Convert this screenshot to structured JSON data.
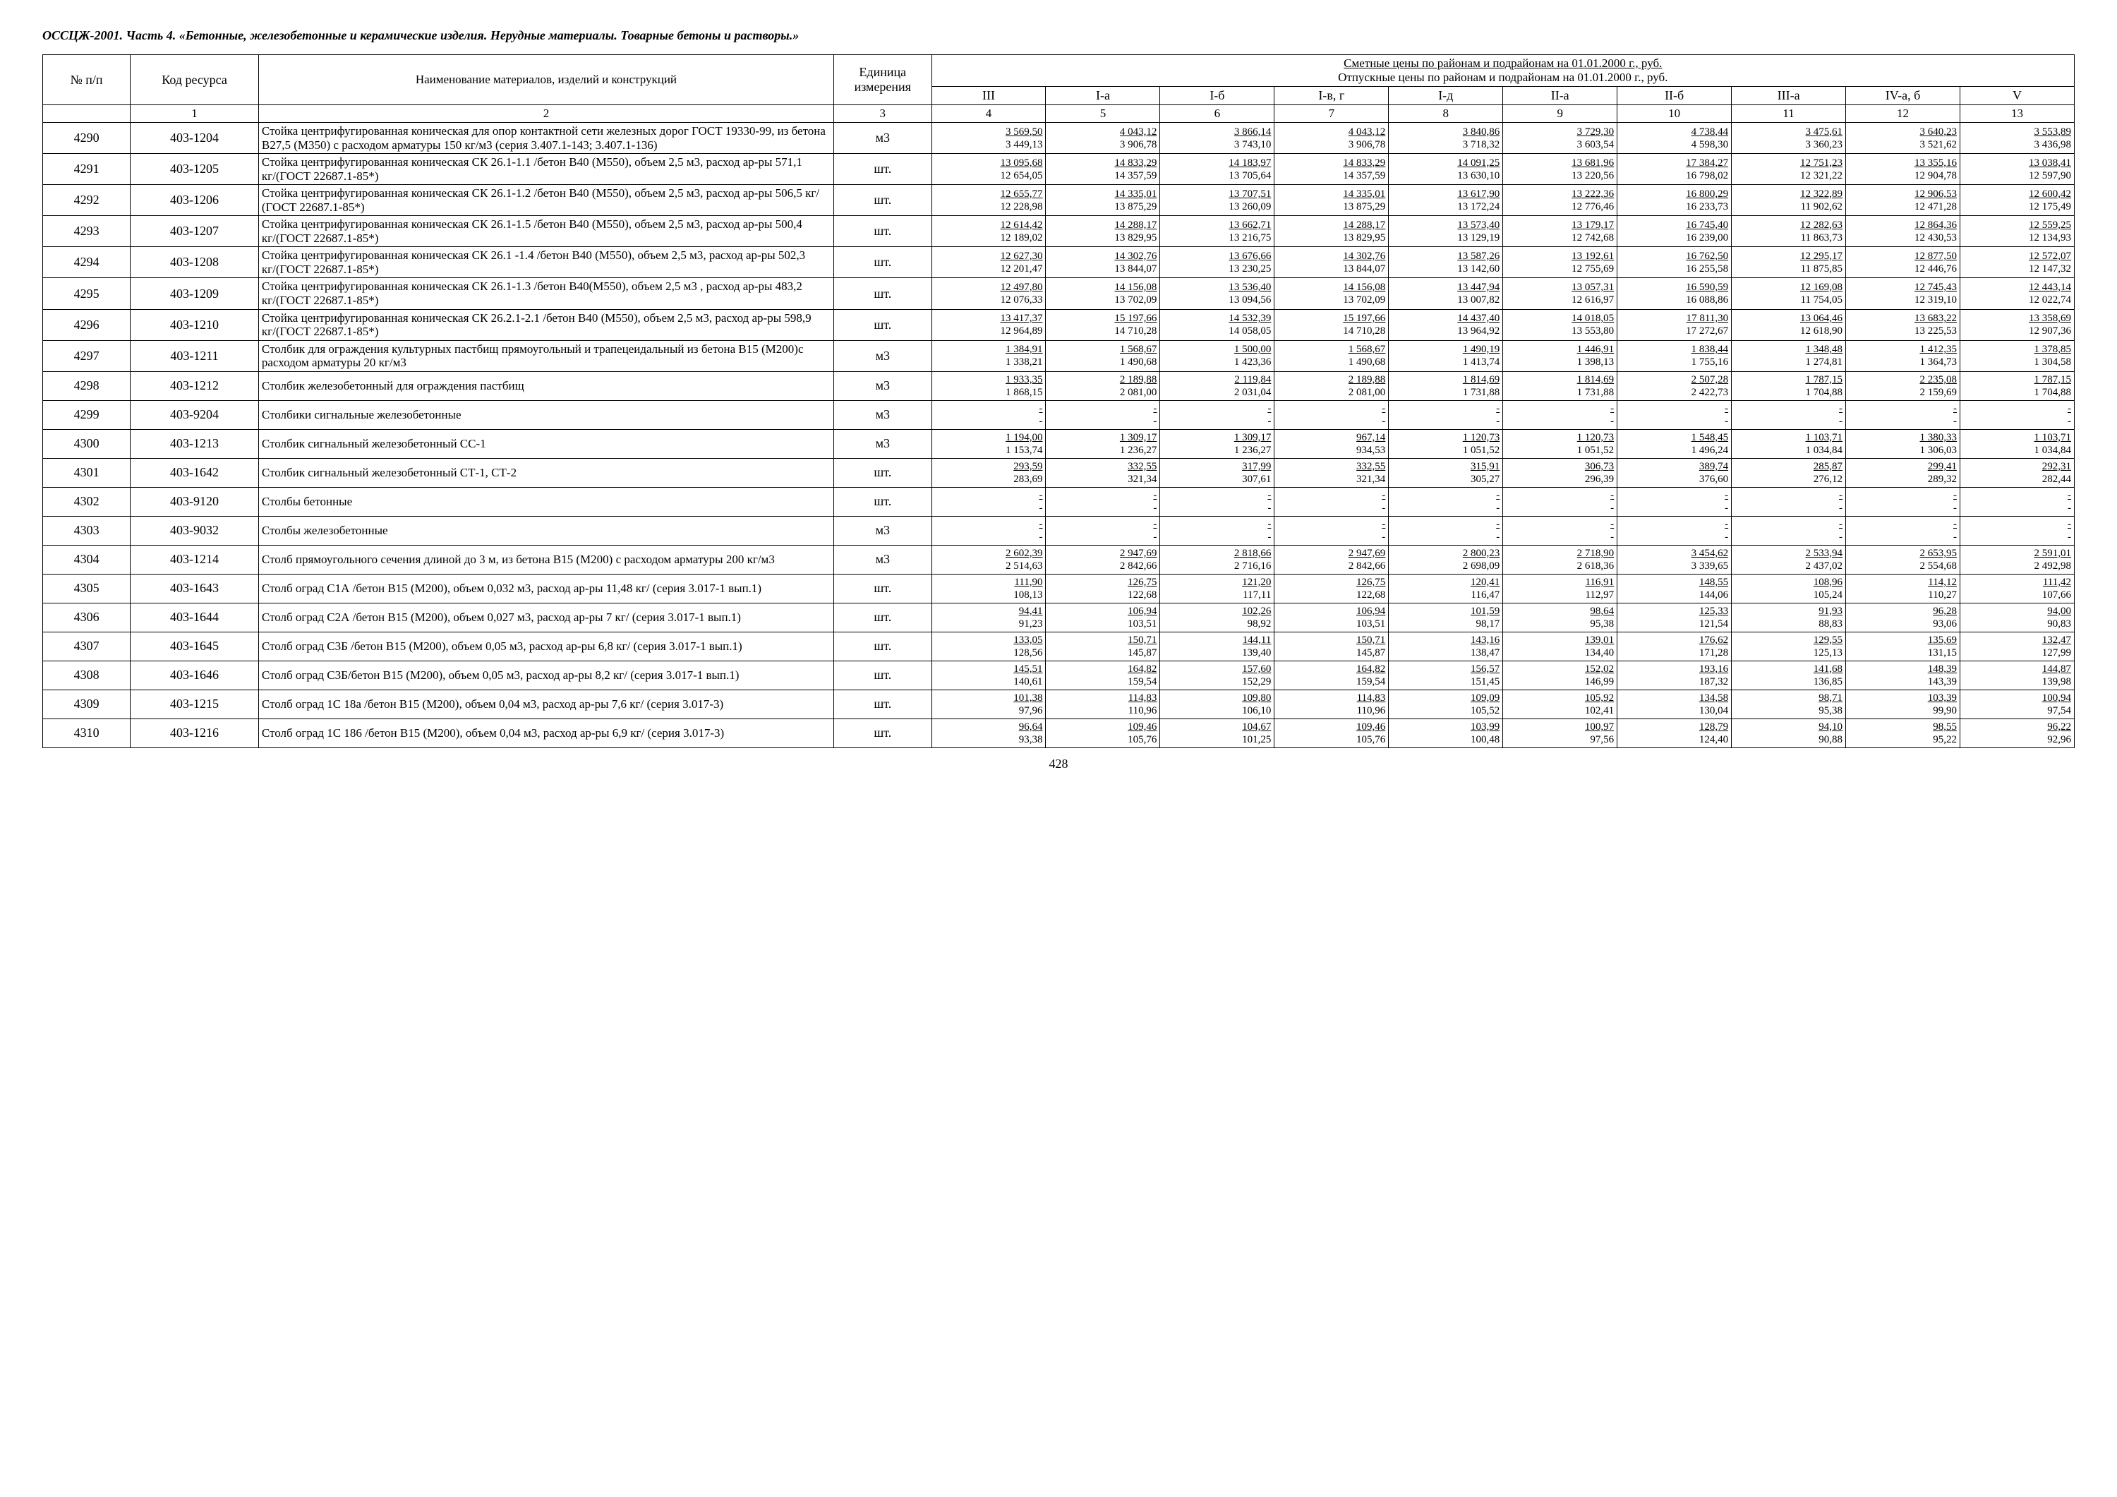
{
  "title": "ОССЦЖ-2001. Часть 4. «Бетонные, железобетонные и керамические изделия. Нерудные материалы. Товарные бетоны и растворы.»",
  "page_number": "428",
  "header": {
    "num": "№ п/п",
    "code": "Код ресурса",
    "name": "Наименование материалов, изделий и конструкций",
    "unit": "Единица измерения",
    "prices_line1": "Сметные цены по районам и подрайонам на 01.01.2000 г., руб.",
    "prices_line2": "Отпускные цены по районам и подрайонам на 01.01.2000 г., руб.",
    "cols": [
      "III",
      "I-а",
      "I-б",
      "I-в, г",
      "I-д",
      "II-а",
      "II-б",
      "III-а",
      "IV-а, б",
      "V"
    ]
  },
  "numrow": [
    "",
    "1",
    "2",
    "3",
    "4",
    "5",
    "6",
    "7",
    "8",
    "9",
    "10",
    "11",
    "12",
    "13"
  ],
  "rows": [
    {
      "n": "4290",
      "code": "403-1204",
      "name": "Стойка центрифугированная коническая для опор контактной сети железных дорог ГОСТ 19330-99, из бетона В27,5 (М350) с расходом арматуры 150 кг/м3 (серия 3.407.1-143; 3.407.1-136)",
      "unit": "м3",
      "p": [
        [
          "3 569,50",
          "3 449,13"
        ],
        [
          "4 043,12",
          "3 906,78"
        ],
        [
          "3 866,14",
          "3 743,10"
        ],
        [
          "4 043,12",
          "3 906,78"
        ],
        [
          "3 840,86",
          "3 718,32"
        ],
        [
          "3 729,30",
          "3 603,54"
        ],
        [
          "4 738,44",
          "4 598,30"
        ],
        [
          "3 475,61",
          "3 360,23"
        ],
        [
          "3 640,23",
          "3 521,62"
        ],
        [
          "3 553,89",
          "3 436,98"
        ]
      ]
    },
    {
      "n": "4291",
      "code": "403-1205",
      "name": "Стойка центрифугированная коническая СК 26.1-1.1 /бетон В40 (М550), объем 2,5 м3, расход ар-ры 571,1 кг/(ГОСТ 22687.1-85*)",
      "unit": "шт.",
      "p": [
        [
          "13 095,68",
          "12 654,05"
        ],
        [
          "14 833,29",
          "14 357,59"
        ],
        [
          "14 183,97",
          "13 705,64"
        ],
        [
          "14 833,29",
          "14 357,59"
        ],
        [
          "14 091,25",
          "13 630,10"
        ],
        [
          "13 681,96",
          "13 220,56"
        ],
        [
          "17 384,27",
          "16 798,02"
        ],
        [
          "12 751,23",
          "12 321,22"
        ],
        [
          "13 355,16",
          "12 904,78"
        ],
        [
          "13 038,41",
          "12 597,90"
        ]
      ]
    },
    {
      "n": "4292",
      "code": "403-1206",
      "name": "Стойка центрифугированная коническая СК 26.1-1.2 /бетон В40 (М550), объем 2,5 м3, расход ар-ры 506,5 кг/ (ГОСТ 22687.1-85*)",
      "unit": "шт.",
      "p": [
        [
          "12 655,77",
          "12 228,98"
        ],
        [
          "14 335,01",
          "13 875,29"
        ],
        [
          "13 707,51",
          "13 260,09"
        ],
        [
          "14 335,01",
          "13 875,29"
        ],
        [
          "13 617,90",
          "13 172,24"
        ],
        [
          "13 222,36",
          "12 776,46"
        ],
        [
          "16 800,29",
          "16 233,73"
        ],
        [
          "12 322,89",
          "11 902,62"
        ],
        [
          "12 906,53",
          "12 471,28"
        ],
        [
          "12 600,42",
          "12 175,49"
        ]
      ]
    },
    {
      "n": "4293",
      "code": "403-1207",
      "name": "Стойка центрифугированная коническая СК 26.1-1.5 /бетон В40 (М550), объем 2,5 м3, расход ар-ры 500,4 кг/(ГОСТ 22687.1-85*)",
      "unit": "шт.",
      "p": [
        [
          "12 614,42",
          "12 189,02"
        ],
        [
          "14 288,17",
          "13 829,95"
        ],
        [
          "13 662,71",
          "13 216,75"
        ],
        [
          "14 288,17",
          "13 829,95"
        ],
        [
          "13 573,40",
          "13 129,19"
        ],
        [
          "13 179,17",
          "12 742,68"
        ],
        [
          "16 745,40",
          "16 239,00"
        ],
        [
          "12 282,63",
          "11 863,73"
        ],
        [
          "12 864,36",
          "12 430,53"
        ],
        [
          "12 559,25",
          "12 134,93"
        ]
      ]
    },
    {
      "n": "4294",
      "code": "403-1208",
      "name": "Стойка центрифугированная коническая СК 26.1 -1.4 /бетон В40 (М550), объем 2,5 м3, расход ар-ры 502,3 кг/(ГОСТ 22687.1-85*)",
      "unit": "шт.",
      "p": [
        [
          "12 627,30",
          "12 201,47"
        ],
        [
          "14 302,76",
          "13 844,07"
        ],
        [
          "13 676,66",
          "13 230,25"
        ],
        [
          "14 302,76",
          "13 844,07"
        ],
        [
          "13 587,26",
          "13 142,60"
        ],
        [
          "13 192,61",
          "12 755,69"
        ],
        [
          "16 762,50",
          "16 255,58"
        ],
        [
          "12 295,17",
          "11 875,85"
        ],
        [
          "12 877,50",
          "12 446,76"
        ],
        [
          "12 572,07",
          "12 147,32"
        ]
      ]
    },
    {
      "n": "4295",
      "code": "403-1209",
      "name": "Стойка центрифугированная коническая СК 26.1-1.3 /бетон В40(М550), объем 2,5 м3 , расход ар-ры 483,2 кг/(ГОСТ 22687.1-85*)",
      "unit": "шт.",
      "p": [
        [
          "12 497,80",
          "12 076,33"
        ],
        [
          "14 156,08",
          "13 702,09"
        ],
        [
          "13 536,40",
          "13 094,56"
        ],
        [
          "14 156,08",
          "13 702,09"
        ],
        [
          "13 447,94",
          "13 007,82"
        ],
        [
          "13 057,31",
          "12 616,97"
        ],
        [
          "16 590,59",
          "16 088,86"
        ],
        [
          "12 169,08",
          "11 754,05"
        ],
        [
          "12 745,43",
          "12 319,10"
        ],
        [
          "12 443,14",
          "12 022,74"
        ]
      ]
    },
    {
      "n": "4296",
      "code": "403-1210",
      "name": "Стойка центрифугированная коническая СК 26.2.1-2.1 /бетон В40 (М550), объем 2,5 м3, расход ар-ры 598,9 кг/(ГОСТ 22687.1-85*)",
      "unit": "шт.",
      "p": [
        [
          "13 417,37",
          "12 964,89"
        ],
        [
          "15 197,66",
          "14 710,28"
        ],
        [
          "14 532,39",
          "14 058,05"
        ],
        [
          "15 197,66",
          "14 710,28"
        ],
        [
          "14 437,40",
          "13 964,92"
        ],
        [
          "14 018,05",
          "13 553,80"
        ],
        [
          "17 811,30",
          "17 272,67"
        ],
        [
          "13 064,46",
          "12 618,90"
        ],
        [
          "13 683,22",
          "13 225,53"
        ],
        [
          "13 358,69",
          "12 907,36"
        ]
      ]
    },
    {
      "n": "4297",
      "code": "403-1211",
      "name": "Столбик для ограждения культурных пастбищ прямоугольный и трапецеидальный из бетона В15 (М200)с расходом арматуры 20 кг/м3",
      "unit": "м3",
      "p": [
        [
          "1 384,91",
          "1 338,21"
        ],
        [
          "1 568,67",
          "1 490,68"
        ],
        [
          "1 500,00",
          "1 423,36"
        ],
        [
          "1 568,67",
          "1 490,68"
        ],
        [
          "1 490,19",
          "1 413,74"
        ],
        [
          "1 446,91",
          "1 398,13"
        ],
        [
          "1 838,44",
          "1 755,16"
        ],
        [
          "1 348,48",
          "1 274,81"
        ],
        [
          "1 412,35",
          "1 364,73"
        ],
        [
          "1 378,85",
          "1 304,58"
        ]
      ]
    },
    {
      "n": "4298",
      "code": "403-1212",
      "name": "Столбик железобетонный для ограждения пастбищ",
      "unit": "м3",
      "p": [
        [
          "1 933,35",
          "1 868,15"
        ],
        [
          "2 189,88",
          "2 081,00"
        ],
        [
          "2 119,84",
          "2 031,04"
        ],
        [
          "2 189,88",
          "2 081,00"
        ],
        [
          "1 814,69",
          "1 731,88"
        ],
        [
          "1 814,69",
          "1 731,88"
        ],
        [
          "2 507,28",
          "2 422,73"
        ],
        [
          "1 787,15",
          "1 704,88"
        ],
        [
          "2 235,08",
          "2 159,69"
        ],
        [
          "1 787,15",
          "1 704,88"
        ]
      ]
    },
    {
      "n": "4299",
      "code": "403-9204",
      "name": "Столбики сигнальные железобетонные",
      "unit": "м3",
      "p": [
        [
          "-",
          "-"
        ],
        [
          "-",
          "-"
        ],
        [
          "-",
          "-"
        ],
        [
          "-",
          "-"
        ],
        [
          "-",
          "-"
        ],
        [
          "-",
          "-"
        ],
        [
          "-",
          "-"
        ],
        [
          "-",
          "-"
        ],
        [
          "-",
          "-"
        ],
        [
          "-",
          "-"
        ]
      ]
    },
    {
      "n": "4300",
      "code": "403-1213",
      "name": "Столбик сигнальный железобетонный СС-1",
      "unit": "м3",
      "p": [
        [
          "1 194,00",
          "1 153,74"
        ],
        [
          "1 309,17",
          "1 236,27"
        ],
        [
          "1 309,17",
          "1 236,27"
        ],
        [
          "967,14",
          "934,53"
        ],
        [
          "1 120,73",
          "1 051,52"
        ],
        [
          "1 120,73",
          "1 051,52"
        ],
        [
          "1 548,45",
          "1 496,24"
        ],
        [
          "1 103,71",
          "1 034,84"
        ],
        [
          "1 380,33",
          "1 306,03"
        ],
        [
          "1 103,71",
          "1 034,84"
        ]
      ]
    },
    {
      "n": "4301",
      "code": "403-1642",
      "name": "Столбик сигнальный железобетонный СТ-1, СТ-2",
      "unit": "шт.",
      "p": [
        [
          "293,59",
          "283,69"
        ],
        [
          "332,55",
          "321,34"
        ],
        [
          "317,99",
          "307,61"
        ],
        [
          "332,55",
          "321,34"
        ],
        [
          "315,91",
          "305,27"
        ],
        [
          "306,73",
          "296,39"
        ],
        [
          "389,74",
          "376,60"
        ],
        [
          "285,87",
          "276,12"
        ],
        [
          "299,41",
          "289,32"
        ],
        [
          "292,31",
          "282,44"
        ]
      ]
    },
    {
      "n": "4302",
      "code": "403-9120",
      "name": "Столбы бетонные",
      "unit": "шт.",
      "p": [
        [
          "-",
          "-"
        ],
        [
          "-",
          "-"
        ],
        [
          "-",
          "-"
        ],
        [
          "-",
          "-"
        ],
        [
          "-",
          "-"
        ],
        [
          "-",
          "-"
        ],
        [
          "-",
          "-"
        ],
        [
          "-",
          "-"
        ],
        [
          "-",
          "-"
        ],
        [
          "-",
          "-"
        ]
      ]
    },
    {
      "n": "4303",
      "code": "403-9032",
      "name": "Столбы железобетонные",
      "unit": "м3",
      "p": [
        [
          "-",
          "-"
        ],
        [
          "-",
          "-"
        ],
        [
          "-",
          "-"
        ],
        [
          "-",
          "-"
        ],
        [
          "-",
          "-"
        ],
        [
          "-",
          "-"
        ],
        [
          "-",
          "-"
        ],
        [
          "-",
          "-"
        ],
        [
          "-",
          "-"
        ],
        [
          "-",
          "-"
        ]
      ]
    },
    {
      "n": "4304",
      "code": "403-1214",
      "name": "Столб прямоугольного сечения длиной до 3 м, из бетона В15 (М200) с расходом арматуры 200 кг/м3",
      "unit": "м3",
      "p": [
        [
          "2 602,39",
          "2 514,63"
        ],
        [
          "2 947,69",
          "2 842,66"
        ],
        [
          "2 818,66",
          "2 716,16"
        ],
        [
          "2 947,69",
          "2 842,66"
        ],
        [
          "2 800,23",
          "2 698,09"
        ],
        [
          "2 718,90",
          "2 618,36"
        ],
        [
          "3 454,62",
          "3 339,65"
        ],
        [
          "2 533,94",
          "2 437,02"
        ],
        [
          "2 653,95",
          "2 554,68"
        ],
        [
          "2 591,01",
          "2 492,98"
        ]
      ]
    },
    {
      "n": "4305",
      "code": "403-1643",
      "name": "Столб оград С1А /бетон В15 (М200), объем 0,032 м3, расход ар-ры 11,48 кг/ (серия 3.017-1 вып.1)",
      "unit": "шт.",
      "p": [
        [
          "111,90",
          "108,13"
        ],
        [
          "126,75",
          "122,68"
        ],
        [
          "121,20",
          "117,11"
        ],
        [
          "126,75",
          "122,68"
        ],
        [
          "120,41",
          "116,47"
        ],
        [
          "116,91",
          "112,97"
        ],
        [
          "148,55",
          "144,06"
        ],
        [
          "108,96",
          "105,24"
        ],
        [
          "114,12",
          "110,27"
        ],
        [
          "111,42",
          "107,66"
        ]
      ]
    },
    {
      "n": "4306",
      "code": "403-1644",
      "name": "Столб оград С2А /бетон В15 (М200), объем 0,027 м3, расход ар-ры 7 кг/ (серия 3.017-1 вып.1)",
      "unit": "шт.",
      "p": [
        [
          "94,41",
          "91,23"
        ],
        [
          "106,94",
          "103,51"
        ],
        [
          "102,26",
          "98,92"
        ],
        [
          "106,94",
          "103,51"
        ],
        [
          "101,59",
          "98,17"
        ],
        [
          "98,64",
          "95,38"
        ],
        [
          "125,33",
          "121,54"
        ],
        [
          "91,93",
          "88,83"
        ],
        [
          "96,28",
          "93,06"
        ],
        [
          "94,00",
          "90,83"
        ]
      ]
    },
    {
      "n": "4307",
      "code": "403-1645",
      "name": "Столб оград С3Б /бетон В15 (М200), объем 0,05 м3, расход ар-ры 6,8 кг/ (серия 3.017-1 вып.1)",
      "unit": "шт.",
      "p": [
        [
          "133,05",
          "128,56"
        ],
        [
          "150,71",
          "145,87"
        ],
        [
          "144,11",
          "139,40"
        ],
        [
          "150,71",
          "145,87"
        ],
        [
          "143,16",
          "138,47"
        ],
        [
          "139,01",
          "134,40"
        ],
        [
          "176,62",
          "171,28"
        ],
        [
          "129,55",
          "125,13"
        ],
        [
          "135,69",
          "131,15"
        ],
        [
          "132,47",
          "127,99"
        ]
      ]
    },
    {
      "n": "4308",
      "code": "403-1646",
      "name": "Столб оград С3Б/бетон В15 (М200), объем 0,05 м3, расход ар-ры 8,2 кг/ (серия 3.017-1 вып.1)",
      "unit": "шт.",
      "p": [
        [
          "145,51",
          "140,61"
        ],
        [
          "164,82",
          "159,54"
        ],
        [
          "157,60",
          "152,29"
        ],
        [
          "164,82",
          "159,54"
        ],
        [
          "156,57",
          "151,45"
        ],
        [
          "152,02",
          "146,99"
        ],
        [
          "193,16",
          "187,32"
        ],
        [
          "141,68",
          "136,85"
        ],
        [
          "148,39",
          "143,39"
        ],
        [
          "144,87",
          "139,98"
        ]
      ]
    },
    {
      "n": "4309",
      "code": "403-1215",
      "name": "Столб оград 1С 18а /бетон В15 (М200), объем 0,04 м3, расход ар-ры 7,6 кг/ (серия 3.017-3)",
      "unit": "шт.",
      "p": [
        [
          "101,38",
          "97,96"
        ],
        [
          "114,83",
          "110,96"
        ],
        [
          "109,80",
          "106,10"
        ],
        [
          "114,83",
          "110,96"
        ],
        [
          "109,09",
          "105,52"
        ],
        [
          "105,92",
          "102,41"
        ],
        [
          "134,58",
          "130,04"
        ],
        [
          "98,71",
          "95,38"
        ],
        [
          "103,39",
          "99,90"
        ],
        [
          "100,94",
          "97,54"
        ]
      ]
    },
    {
      "n": "4310",
      "code": "403-1216",
      "name": "Столб оград 1С 186 /бетон В15 (М200), объем 0,04 м3, расход ар-ры 6,9 кг/ (серия 3.017-3)",
      "unit": "шт.",
      "p": [
        [
          "96,64",
          "93,38"
        ],
        [
          "109,46",
          "105,76"
        ],
        [
          "104,67",
          "101,25"
        ],
        [
          "109,46",
          "105,76"
        ],
        [
          "103,99",
          "100,48"
        ],
        [
          "100,97",
          "97,56"
        ],
        [
          "128,79",
          "124,40"
        ],
        [
          "94,10",
          "90,88"
        ],
        [
          "98,55",
          "95,22"
        ],
        [
          "96,22",
          "92,96"
        ]
      ]
    }
  ]
}
